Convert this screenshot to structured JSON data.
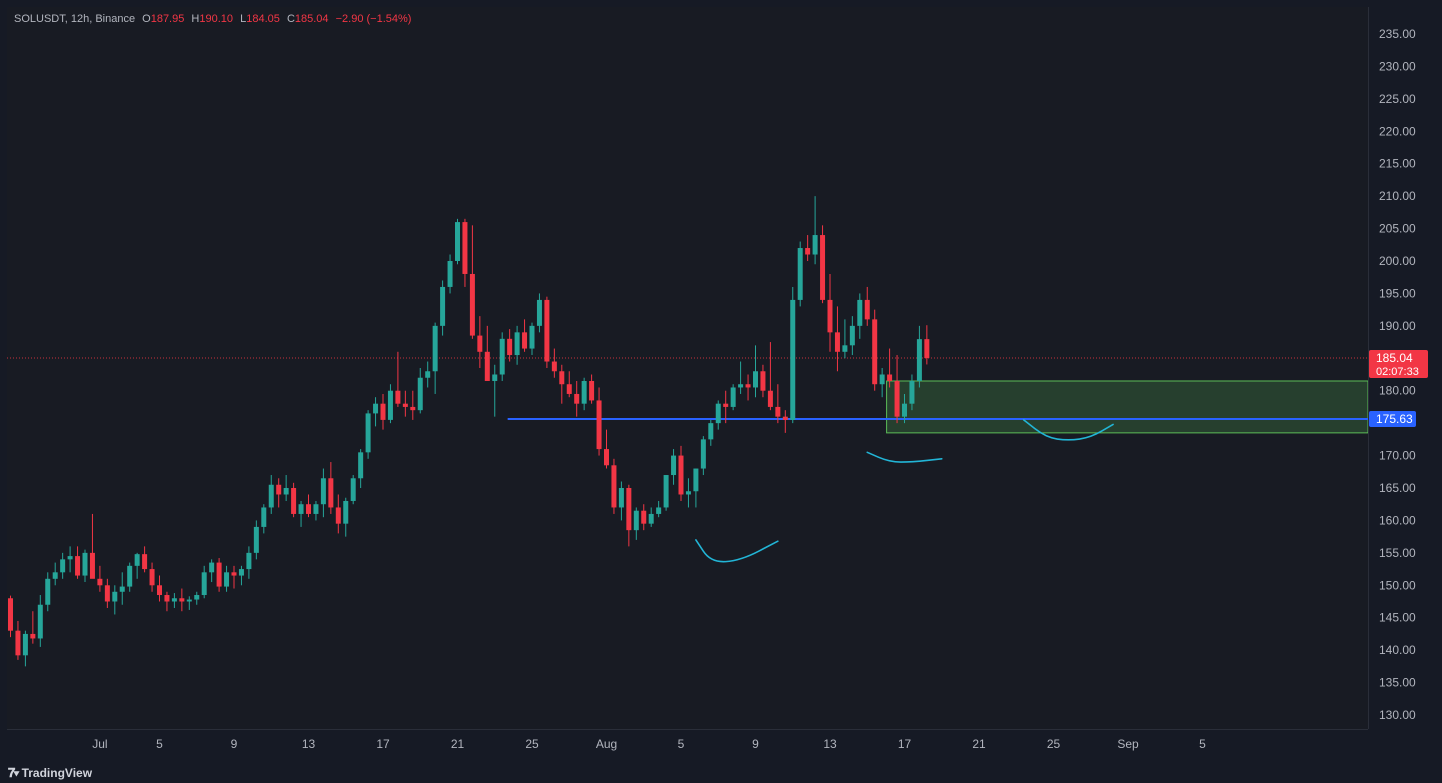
{
  "legend": {
    "symbol": "SOLUSDT, 12h, Binance",
    "o_label": "O",
    "o": "187.95",
    "h_label": "H",
    "h": "190.10",
    "l_label": "L",
    "l": "184.05",
    "c_label": "C",
    "c": "185.04",
    "change": "−2.90 (−1.54%)"
  },
  "branding": {
    "name": "TradingView"
  },
  "colors": {
    "up": "#26a69a",
    "down": "#f23645",
    "level_line": "#2962ff",
    "zone": "#5cbd58",
    "drawing": "#22b5d6"
  },
  "chart_data": {
    "type": "candlestick",
    "timeframe": "12h",
    "y_axis": {
      "min": 130,
      "max": 235,
      "ticks": [
        235,
        230,
        225,
        220,
        215,
        210,
        205,
        200,
        195,
        190,
        185,
        180,
        175,
        170,
        165,
        160,
        155,
        150,
        145,
        140,
        135,
        130
      ],
      "tick_labels": [
        "235.00",
        "230.00",
        "225.00",
        "220.00",
        "215.00",
        "210.00",
        "205.00",
        "200.00",
        "195.00",
        "190.00",
        "180.00",
        "175.00",
        "170.00",
        "165.00",
        "160.00",
        "155.00",
        "150.00",
        "145.00",
        "140.00",
        "135.00",
        "130.00"
      ]
    },
    "x_axis": {
      "labels": [
        "Jul",
        "5",
        "9",
        "13",
        "17",
        "21",
        "25",
        "Aug",
        "5",
        "9",
        "13",
        "17",
        "21",
        "25",
        "Sep",
        "5"
      ],
      "label_bar_index": [
        12,
        20,
        30,
        40,
        50,
        60,
        70,
        80,
        90,
        100,
        110,
        120,
        130,
        140,
        150,
        160
      ]
    },
    "candles": [
      {
        "o": 148.0,
        "h": 148.4,
        "l": 142.0,
        "c": 143.0
      },
      {
        "o": 143.0,
        "h": 144.5,
        "l": 138.5,
        "c": 139.2
      },
      {
        "o": 139.2,
        "h": 143.0,
        "l": 137.5,
        "c": 142.5
      },
      {
        "o": 142.5,
        "h": 146.0,
        "l": 141.0,
        "c": 141.8
      },
      {
        "o": 141.8,
        "h": 148.5,
        "l": 140.5,
        "c": 147.0
      },
      {
        "o": 147.0,
        "h": 152.0,
        "l": 146.0,
        "c": 151.0
      },
      {
        "o": 151.0,
        "h": 153.5,
        "l": 150.0,
        "c": 152.0
      },
      {
        "o": 152.0,
        "h": 155.0,
        "l": 151.0,
        "c": 154.0
      },
      {
        "o": 154.0,
        "h": 156.0,
        "l": 152.0,
        "c": 154.5
      },
      {
        "o": 154.5,
        "h": 156.0,
        "l": 151.0,
        "c": 151.5
      },
      {
        "o": 151.5,
        "h": 155.5,
        "l": 150.5,
        "c": 155.0
      },
      {
        "o": 155.0,
        "h": 161.0,
        "l": 152.0,
        "c": 151.0
      },
      {
        "o": 151.0,
        "h": 153.0,
        "l": 149.0,
        "c": 150.0
      },
      {
        "o": 150.0,
        "h": 151.0,
        "l": 146.5,
        "c": 147.5
      },
      {
        "o": 147.5,
        "h": 150.0,
        "l": 145.5,
        "c": 149.0
      },
      {
        "o": 149.0,
        "h": 152.0,
        "l": 147.0,
        "c": 149.8
      },
      {
        "o": 149.8,
        "h": 153.5,
        "l": 149.0,
        "c": 153.0
      },
      {
        "o": 153.0,
        "h": 155.0,
        "l": 151.0,
        "c": 154.8
      },
      {
        "o": 154.8,
        "h": 156.0,
        "l": 152.0,
        "c": 152.5
      },
      {
        "o": 152.5,
        "h": 153.5,
        "l": 149.0,
        "c": 150.0
      },
      {
        "o": 150.0,
        "h": 151.5,
        "l": 147.5,
        "c": 148.5
      },
      {
        "o": 148.5,
        "h": 149.0,
        "l": 146.0,
        "c": 147.5
      },
      {
        "o": 147.5,
        "h": 148.8,
        "l": 146.5,
        "c": 148.0
      },
      {
        "o": 148.0,
        "h": 149.5,
        "l": 146.0,
        "c": 147.5
      },
      {
        "o": 147.5,
        "h": 148.3,
        "l": 146.2,
        "c": 147.8
      },
      {
        "o": 147.8,
        "h": 149.0,
        "l": 147.0,
        "c": 148.5
      },
      {
        "o": 148.5,
        "h": 153.0,
        "l": 148.0,
        "c": 152.0
      },
      {
        "o": 152.0,
        "h": 154.0,
        "l": 150.5,
        "c": 153.5
      },
      {
        "o": 153.5,
        "h": 154.2,
        "l": 149.0,
        "c": 149.8
      },
      {
        "o": 149.8,
        "h": 153.0,
        "l": 149.0,
        "c": 152.0
      },
      {
        "o": 152.0,
        "h": 153.0,
        "l": 149.5,
        "c": 151.5
      },
      {
        "o": 151.5,
        "h": 153.0,
        "l": 150.0,
        "c": 152.5
      },
      {
        "o": 152.5,
        "h": 156.0,
        "l": 151.0,
        "c": 155.0
      },
      {
        "o": 155.0,
        "h": 160.0,
        "l": 154.0,
        "c": 159.0
      },
      {
        "o": 159.0,
        "h": 162.5,
        "l": 158.0,
        "c": 162.0
      },
      {
        "o": 162.0,
        "h": 167.0,
        "l": 161.0,
        "c": 165.5
      },
      {
        "o": 165.5,
        "h": 166.5,
        "l": 162.0,
        "c": 164.0
      },
      {
        "o": 164.0,
        "h": 167.0,
        "l": 163.0,
        "c": 165.0
      },
      {
        "o": 165.0,
        "h": 165.8,
        "l": 160.5,
        "c": 161.0
      },
      {
        "o": 161.0,
        "h": 163.0,
        "l": 159.0,
        "c": 162.5
      },
      {
        "o": 162.5,
        "h": 164.0,
        "l": 160.5,
        "c": 161.0
      },
      {
        "o": 161.0,
        "h": 163.0,
        "l": 160.0,
        "c": 162.5
      },
      {
        "o": 162.5,
        "h": 168.0,
        "l": 160.5,
        "c": 166.5
      },
      {
        "o": 166.5,
        "h": 169.0,
        "l": 161.0,
        "c": 162.0
      },
      {
        "o": 162.0,
        "h": 164.0,
        "l": 158.0,
        "c": 159.5
      },
      {
        "o": 159.5,
        "h": 163.5,
        "l": 157.5,
        "c": 163.0
      },
      {
        "o": 163.0,
        "h": 167.0,
        "l": 162.5,
        "c": 166.5
      },
      {
        "o": 166.5,
        "h": 171.0,
        "l": 165.0,
        "c": 170.5
      },
      {
        "o": 170.5,
        "h": 177.0,
        "l": 169.5,
        "c": 176.5
      },
      {
        "o": 176.5,
        "h": 179.0,
        "l": 174.5,
        "c": 178.0
      },
      {
        "o": 178.0,
        "h": 179.5,
        "l": 174.0,
        "c": 175.5
      },
      {
        "o": 175.5,
        "h": 181.0,
        "l": 175.0,
        "c": 180.0
      },
      {
        "o": 180.0,
        "h": 186.0,
        "l": 177.5,
        "c": 178.0
      },
      {
        "o": 178.0,
        "h": 180.0,
        "l": 176.0,
        "c": 177.5
      },
      {
        "o": 177.5,
        "h": 180.0,
        "l": 175.5,
        "c": 177.0
      },
      {
        "o": 177.0,
        "h": 183.5,
        "l": 176.5,
        "c": 182.0
      },
      {
        "o": 182.0,
        "h": 184.5,
        "l": 180.5,
        "c": 183.0
      },
      {
        "o": 183.0,
        "h": 190.5,
        "l": 179.5,
        "c": 190.0
      },
      {
        "o": 190.0,
        "h": 197.0,
        "l": 188.5,
        "c": 196.0
      },
      {
        "o": 196.0,
        "h": 201.0,
        "l": 195.0,
        "c": 200.0
      },
      {
        "o": 200.0,
        "h": 206.5,
        "l": 199.5,
        "c": 206.0
      },
      {
        "o": 206.0,
        "h": 206.5,
        "l": 196.0,
        "c": 198.0
      },
      {
        "o": 198.0,
        "h": 205.5,
        "l": 188.0,
        "c": 188.5
      },
      {
        "o": 188.5,
        "h": 191.5,
        "l": 183.5,
        "c": 186.0
      },
      {
        "o": 186.0,
        "h": 190.0,
        "l": 182.0,
        "c": 181.5
      },
      {
        "o": 181.5,
        "h": 184.0,
        "l": 176.0,
        "c": 182.5
      },
      {
        "o": 182.5,
        "h": 189.0,
        "l": 181.5,
        "c": 188.0
      },
      {
        "o": 188.0,
        "h": 189.5,
        "l": 184.5,
        "c": 185.5
      },
      {
        "o": 185.5,
        "h": 190.0,
        "l": 184.0,
        "c": 189.0
      },
      {
        "o": 189.0,
        "h": 191.0,
        "l": 186.0,
        "c": 186.5
      },
      {
        "o": 186.5,
        "h": 190.5,
        "l": 185.5,
        "c": 190.0
      },
      {
        "o": 190.0,
        "h": 195.0,
        "l": 189.0,
        "c": 194.0
      },
      {
        "o": 194.0,
        "h": 194.5,
        "l": 183.5,
        "c": 184.5
      },
      {
        "o": 184.5,
        "h": 186.5,
        "l": 182.0,
        "c": 183.0
      },
      {
        "o": 183.0,
        "h": 184.0,
        "l": 178.0,
        "c": 181.0
      },
      {
        "o": 181.0,
        "h": 183.0,
        "l": 179.0,
        "c": 179.5
      },
      {
        "o": 179.5,
        "h": 181.5,
        "l": 176.0,
        "c": 178.0
      },
      {
        "o": 178.0,
        "h": 182.0,
        "l": 177.0,
        "c": 181.5
      },
      {
        "o": 181.5,
        "h": 182.5,
        "l": 178.0,
        "c": 178.5
      },
      {
        "o": 178.5,
        "h": 180.5,
        "l": 170.0,
        "c": 171.0
      },
      {
        "o": 171.0,
        "h": 174.0,
        "l": 168.0,
        "c": 168.5
      },
      {
        "o": 168.5,
        "h": 169.5,
        "l": 161.0,
        "c": 162.0
      },
      {
        "o": 162.0,
        "h": 166.0,
        "l": 160.0,
        "c": 165.0
      },
      {
        "o": 165.0,
        "h": 165.5,
        "l": 156.0,
        "c": 158.5
      },
      {
        "o": 158.5,
        "h": 162.0,
        "l": 157.0,
        "c": 161.5
      },
      {
        "o": 161.5,
        "h": 162.5,
        "l": 158.5,
        "c": 159.5
      },
      {
        "o": 159.5,
        "h": 162.0,
        "l": 159.0,
        "c": 161.0
      },
      {
        "o": 161.0,
        "h": 163.0,
        "l": 160.5,
        "c": 162.0
      },
      {
        "o": 162.0,
        "h": 167.0,
        "l": 161.5,
        "c": 167.0
      },
      {
        "o": 167.0,
        "h": 171.0,
        "l": 165.5,
        "c": 170.0
      },
      {
        "o": 170.0,
        "h": 171.5,
        "l": 163.0,
        "c": 164.0
      },
      {
        "o": 164.0,
        "h": 166.5,
        "l": 162.0,
        "c": 164.5
      },
      {
        "o": 164.5,
        "h": 168.0,
        "l": 162.0,
        "c": 168.0
      },
      {
        "o": 168.0,
        "h": 173.0,
        "l": 167.0,
        "c": 172.5
      },
      {
        "o": 172.5,
        "h": 175.5,
        "l": 171.5,
        "c": 175.0
      },
      {
        "o": 175.0,
        "h": 178.5,
        "l": 174.0,
        "c": 178.0
      },
      {
        "o": 178.0,
        "h": 180.0,
        "l": 175.0,
        "c": 177.5
      },
      {
        "o": 177.5,
        "h": 181.0,
        "l": 177.0,
        "c": 180.5
      },
      {
        "o": 180.5,
        "h": 184.5,
        "l": 179.5,
        "c": 181.0
      },
      {
        "o": 181.0,
        "h": 182.5,
        "l": 178.5,
        "c": 180.5
      },
      {
        "o": 180.5,
        "h": 187.0,
        "l": 179.0,
        "c": 183.0
      },
      {
        "o": 183.0,
        "h": 184.0,
        "l": 179.0,
        "c": 180.0
      },
      {
        "o": 180.0,
        "h": 187.5,
        "l": 177.0,
        "c": 177.5
      },
      {
        "o": 177.5,
        "h": 181.0,
        "l": 175.0,
        "c": 176.0
      },
      {
        "o": 176.0,
        "h": 177.0,
        "l": 173.5,
        "c": 175.5
      },
      {
        "o": 175.5,
        "h": 196.0,
        "l": 175.0,
        "c": 194.0
      },
      {
        "o": 194.0,
        "h": 203.0,
        "l": 193.0,
        "c": 202.0
      },
      {
        "o": 202.0,
        "h": 204.0,
        "l": 200.0,
        "c": 201.0
      },
      {
        "o": 201.0,
        "h": 210.0,
        "l": 199.5,
        "c": 204.0
      },
      {
        "o": 204.0,
        "h": 205.5,
        "l": 193.5,
        "c": 194.0
      },
      {
        "o": 194.0,
        "h": 198.0,
        "l": 186.0,
        "c": 189.0
      },
      {
        "o": 189.0,
        "h": 193.0,
        "l": 183.0,
        "c": 186.0
      },
      {
        "o": 186.0,
        "h": 191.0,
        "l": 185.0,
        "c": 187.0
      },
      {
        "o": 187.0,
        "h": 191.5,
        "l": 185.5,
        "c": 190.0
      },
      {
        "o": 190.0,
        "h": 195.0,
        "l": 188.0,
        "c": 194.0
      },
      {
        "o": 194.0,
        "h": 196.0,
        "l": 190.0,
        "c": 191.0
      },
      {
        "o": 191.0,
        "h": 192.5,
        "l": 180.0,
        "c": 181.0
      },
      {
        "o": 181.0,
        "h": 183.5,
        "l": 179.0,
        "c": 182.5
      },
      {
        "o": 182.5,
        "h": 186.5,
        "l": 180.5,
        "c": 181.5
      },
      {
        "o": 181.5,
        "h": 185.5,
        "l": 175.0,
        "c": 176.0
      },
      {
        "o": 176.0,
        "h": 179.5,
        "l": 175.0,
        "c": 178.0
      },
      {
        "o": 178.0,
        "h": 182.5,
        "l": 177.0,
        "c": 181.5
      },
      {
        "o": 181.5,
        "h": 190.0,
        "l": 180.5,
        "c": 187.95
      },
      {
        "o": 187.95,
        "h": 190.1,
        "l": 184.05,
        "c": 185.04
      }
    ],
    "first_candle_bar_index": 0,
    "price_line": {
      "value": 185.04,
      "label": "185.04",
      "countdown": "02:07:33"
    },
    "horizontal_level": {
      "value": 175.63,
      "label": "175.63",
      "from_bar": 67
    },
    "zone": {
      "top": 181.5,
      "bottom": 173.5,
      "from_bar": 118
    },
    "drawings": [
      {
        "name": "curve-aug-low",
        "points": [
          [
            92,
            157
          ],
          [
            94,
            153.5
          ],
          [
            98,
            153.8
          ],
          [
            103,
            156.8
          ]
        ]
      },
      {
        "name": "curve-aug-12",
        "points": [
          [
            115,
            170.5
          ],
          [
            118,
            169
          ],
          [
            121,
            169
          ],
          [
            125,
            169.5
          ]
        ]
      },
      {
        "name": "curve-aug-19",
        "points": [
          [
            136,
            175.5
          ],
          [
            139,
            172.8
          ],
          [
            142,
            172.3
          ],
          [
            145,
            172.8
          ],
          [
            148,
            174.8
          ]
        ]
      }
    ]
  }
}
